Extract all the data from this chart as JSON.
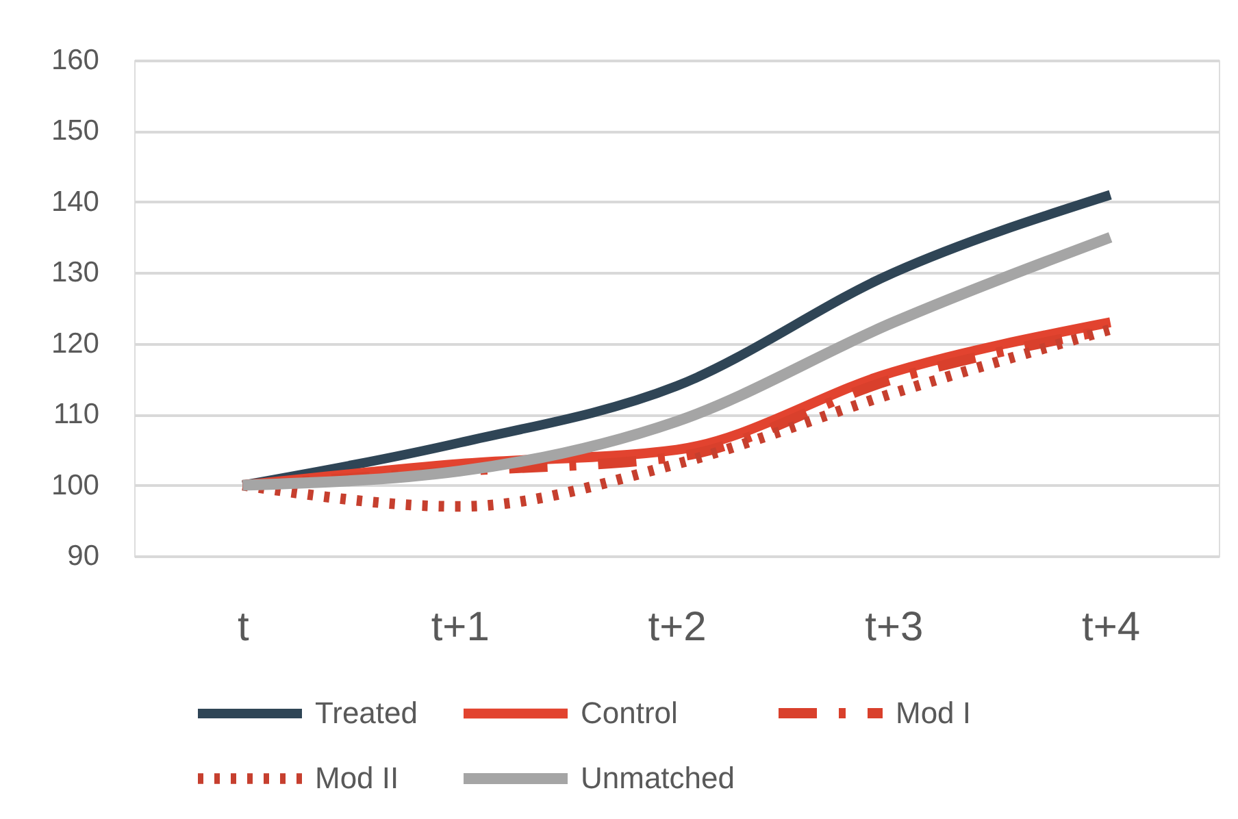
{
  "chart_data": {
    "type": "line",
    "categories": [
      "t",
      "t+1",
      "t+2",
      "t+3",
      "t+4"
    ],
    "series": [
      {
        "name": "Treated",
        "color": "#2f4556",
        "values": [
          100,
          106,
          114,
          130,
          141
        ]
      },
      {
        "name": "Control",
        "color": "#e2432f",
        "values": [
          100,
          103,
          105,
          116,
          123
        ]
      },
      {
        "name": "Mod I",
        "color": "#d9402c",
        "line_style": "dashed",
        "values": [
          100,
          102,
          104,
          115,
          122
        ]
      },
      {
        "name": "Mod II",
        "color": "#c63f2e",
        "line_style": "dotted",
        "values": [
          100,
          97,
          103,
          113,
          122
        ]
      },
      {
        "name": "Unmatched",
        "color": "#a5a5a5",
        "values": [
          100,
          102,
          109,
          123,
          135
        ]
      }
    ],
    "ylim": [
      90,
      160
    ],
    "yticks": [
      90,
      100,
      110,
      120,
      130,
      140,
      150,
      160
    ],
    "grid": "y",
    "legend": "bottom",
    "line_style": "solid"
  }
}
